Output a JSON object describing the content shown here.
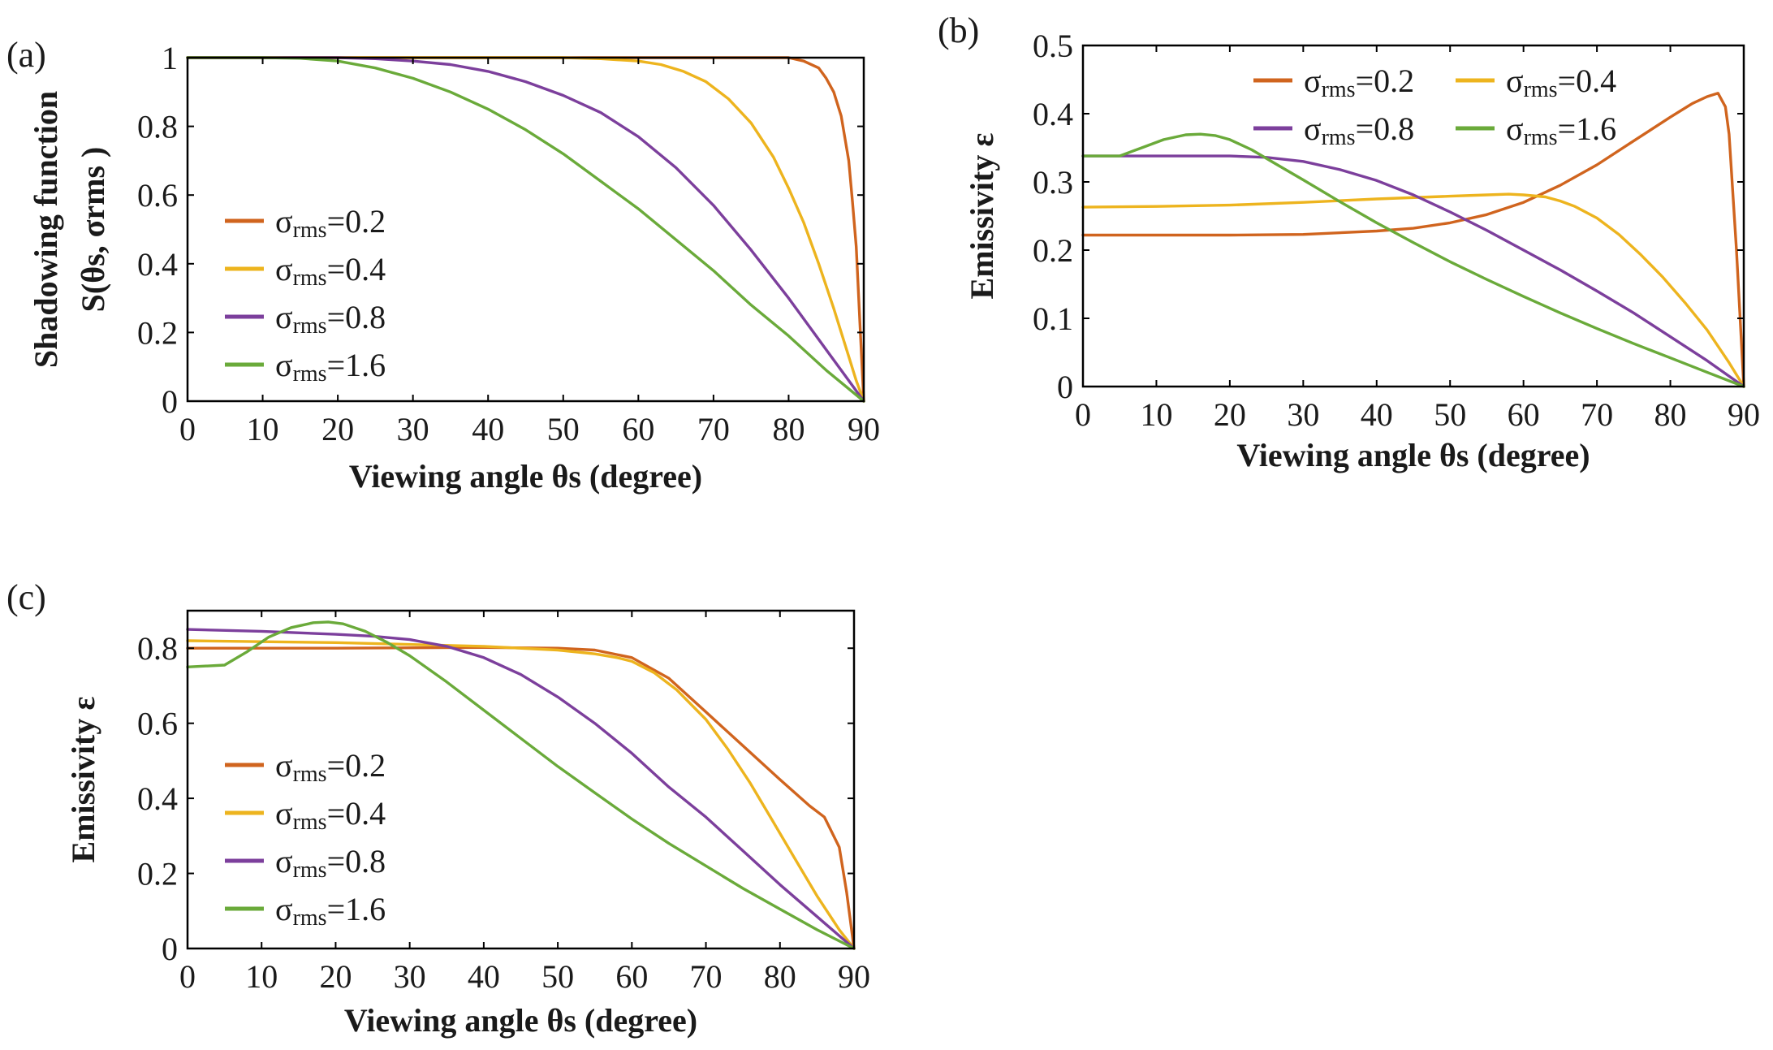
{
  "figure": {
    "panel_labels": [
      "(a)",
      "(b)",
      "(c)"
    ]
  },
  "colors": {
    "s02": "#D0641E",
    "s04": "#EDB41E",
    "s08": "#7C3F9C",
    "s16": "#6AAA3A"
  },
  "chart_data": [
    {
      "type": "line",
      "panel": "(a)",
      "title": "",
      "xlabel": "Viewing angle θs (degree)",
      "ylabel_line1": "Shadowing function",
      "ylabel_line2": "S(θs, σrms )",
      "xlim": [
        0,
        90
      ],
      "ylim": [
        0,
        1
      ],
      "xticks": [
        0,
        10,
        20,
        30,
        40,
        50,
        60,
        70,
        80,
        90
      ],
      "yticks": [
        0,
        0.2,
        0.4,
        0.6,
        0.8,
        1
      ],
      "ytick_labels": [
        "0",
        "0.2",
        "0.4",
        "0.6",
        "0.8",
        "1"
      ],
      "legend_position": "left",
      "legend_layout": "column",
      "series": [
        {
          "key": "s02",
          "name": "σrms=0.2",
          "label_sym": "σ",
          "label_sub": "rms",
          "label_val": "=0.2",
          "x": [
            0,
            20,
            40,
            60,
            70,
            78,
            80,
            82,
            84,
            85,
            86,
            87,
            88,
            88.5,
            89,
            89.5,
            90
          ],
          "y": [
            1,
            1,
            1,
            1,
            1,
            1,
            1,
            0.99,
            0.97,
            0.94,
            0.9,
            0.83,
            0.7,
            0.58,
            0.45,
            0.22,
            0
          ]
        },
        {
          "key": "s04",
          "name": "σrms=0.4",
          "label_sym": "σ",
          "label_sub": "rms",
          "label_val": "=0.4",
          "x": [
            0,
            30,
            45,
            50,
            55,
            60,
            63,
            66,
            69,
            72,
            75,
            78,
            80,
            82,
            84,
            86,
            88,
            89,
            90
          ],
          "y": [
            1,
            1,
            1,
            1,
            0.997,
            0.99,
            0.98,
            0.96,
            0.93,
            0.88,
            0.81,
            0.71,
            0.62,
            0.52,
            0.4,
            0.27,
            0.13,
            0.06,
            0
          ]
        },
        {
          "key": "s08",
          "name": "σrms=0.8",
          "label_sym": "σ",
          "label_sub": "rms",
          "label_val": "=0.8",
          "x": [
            0,
            15,
            20,
            25,
            30,
            35,
            40,
            45,
            50,
            55,
            60,
            65,
            70,
            75,
            80,
            85,
            88,
            90
          ],
          "y": [
            1,
            1,
            1,
            0.997,
            0.99,
            0.98,
            0.96,
            0.93,
            0.89,
            0.84,
            0.77,
            0.68,
            0.57,
            0.44,
            0.3,
            0.15,
            0.06,
            0
          ]
        },
        {
          "key": "s16",
          "name": "σrms=1.6",
          "label_sym": "σ",
          "label_sub": "rms",
          "label_val": "=1.6",
          "x": [
            0,
            10,
            15,
            20,
            25,
            30,
            35,
            40,
            45,
            50,
            55,
            60,
            65,
            70,
            75,
            80,
            85,
            90
          ],
          "y": [
            1,
            1,
            0.998,
            0.99,
            0.97,
            0.94,
            0.9,
            0.85,
            0.79,
            0.72,
            0.64,
            0.56,
            0.47,
            0.38,
            0.28,
            0.19,
            0.09,
            0
          ]
        }
      ]
    },
    {
      "type": "line",
      "panel": "(b)",
      "title": "",
      "xlabel": "Viewing angle θs (degree)",
      "ylabel": "Emissivity ε",
      "xlim": [
        0,
        90
      ],
      "ylim": [
        0,
        0.5
      ],
      "xticks": [
        0,
        10,
        20,
        30,
        40,
        50,
        60,
        70,
        80,
        90
      ],
      "yticks": [
        0,
        0.1,
        0.2,
        0.3,
        0.4,
        0.5
      ],
      "ytick_labels": [
        "0",
        "0.1",
        "0.2",
        "0.3",
        "0.4",
        "0.5"
      ],
      "legend_position": "top",
      "legend_layout": "2x2",
      "series": [
        {
          "key": "s02",
          "name": "σrms=0.2",
          "label_sym": "σ",
          "label_sub": "rms",
          "label_val": "=0.2",
          "x": [
            0,
            20,
            30,
            40,
            45,
            50,
            55,
            60,
            65,
            70,
            75,
            80,
            83,
            85,
            86.5,
            87.5,
            88,
            89,
            90
          ],
          "y": [
            0.222,
            0.222,
            0.223,
            0.228,
            0.232,
            0.24,
            0.252,
            0.27,
            0.295,
            0.325,
            0.36,
            0.395,
            0.415,
            0.425,
            0.43,
            0.41,
            0.37,
            0.2,
            0
          ]
        },
        {
          "key": "s04",
          "name": "σrms=0.4",
          "label_sym": "σ",
          "label_sub": "rms",
          "label_val": "=0.4",
          "x": [
            0,
            10,
            20,
            30,
            40,
            50,
            55,
            58,
            60,
            63,
            65,
            67,
            70,
            73,
            76,
            79,
            82,
            85,
            88,
            90
          ],
          "y": [
            0.263,
            0.264,
            0.266,
            0.27,
            0.275,
            0.279,
            0.281,
            0.282,
            0.281,
            0.278,
            0.272,
            0.264,
            0.247,
            0.223,
            0.193,
            0.16,
            0.123,
            0.083,
            0.035,
            0
          ]
        },
        {
          "key": "s08",
          "name": "σrms=0.8",
          "label_sym": "σ",
          "label_sub": "rms",
          "label_val": "=0.8",
          "x": [
            0,
            10,
            20,
            25,
            30,
            35,
            40,
            45,
            50,
            55,
            60,
            65,
            70,
            75,
            80,
            85,
            90
          ],
          "y": [
            0.338,
            0.338,
            0.338,
            0.336,
            0.33,
            0.318,
            0.302,
            0.281,
            0.256,
            0.229,
            0.2,
            0.171,
            0.14,
            0.108,
            0.073,
            0.038,
            0
          ]
        },
        {
          "key": "s16",
          "name": "σrms=1.6",
          "label_sym": "σ",
          "label_sub": "rms",
          "label_val": "=1.6",
          "x": [
            0,
            5,
            8,
            11,
            14,
            16,
            18,
            20,
            23,
            26,
            30,
            35,
            40,
            45,
            50,
            55,
            60,
            65,
            70,
            75,
            80,
            85,
            90
          ],
          "y": [
            0.338,
            0.338,
            0.35,
            0.362,
            0.369,
            0.37,
            0.368,
            0.362,
            0.347,
            0.328,
            0.303,
            0.271,
            0.24,
            0.211,
            0.183,
            0.157,
            0.132,
            0.108,
            0.085,
            0.063,
            0.042,
            0.021,
            0
          ]
        }
      ]
    },
    {
      "type": "line",
      "panel": "(c)",
      "title": "",
      "xlabel": "Viewing angle θs (degree)",
      "ylabel": "Emissivity ε",
      "xlim": [
        0,
        90
      ],
      "ylim": [
        0,
        0.9
      ],
      "xticks": [
        0,
        10,
        20,
        30,
        40,
        50,
        60,
        70,
        80,
        90
      ],
      "yticks": [
        0,
        0.2,
        0.4,
        0.6,
        0.8
      ],
      "ytick_labels": [
        "0",
        "0.2",
        "0.4",
        "0.6",
        "0.8"
      ],
      "legend_position": "left",
      "legend_layout": "column",
      "series": [
        {
          "key": "s02",
          "name": "σrms=0.2",
          "label_sym": "σ",
          "label_sub": "rms",
          "label_val": "=0.2",
          "x": [
            0,
            20,
            40,
            50,
            55,
            60,
            65,
            70,
            75,
            80,
            84,
            86,
            88,
            89,
            90
          ],
          "y": [
            0.8,
            0.8,
            0.802,
            0.8,
            0.795,
            0.775,
            0.72,
            0.63,
            0.54,
            0.45,
            0.38,
            0.35,
            0.27,
            0.15,
            0
          ]
        },
        {
          "key": "s04",
          "name": "σrms=0.4",
          "label_sym": "σ",
          "label_sub": "rms",
          "label_val": "=0.4",
          "x": [
            0,
            20,
            40,
            50,
            55,
            58,
            60,
            63,
            66,
            70,
            73,
            76,
            79,
            82,
            85,
            88,
            90
          ],
          "y": [
            0.82,
            0.815,
            0.805,
            0.795,
            0.785,
            0.775,
            0.765,
            0.735,
            0.69,
            0.61,
            0.53,
            0.44,
            0.34,
            0.24,
            0.14,
            0.05,
            0
          ]
        },
        {
          "key": "s08",
          "name": "σrms=0.8",
          "label_sym": "σ",
          "label_sub": "rms",
          "label_val": "=0.8",
          "x": [
            0,
            10,
            20,
            25,
            30,
            35,
            40,
            45,
            50,
            55,
            60,
            65,
            70,
            75,
            80,
            85,
            90
          ],
          "y": [
            0.85,
            0.845,
            0.837,
            0.832,
            0.823,
            0.805,
            0.775,
            0.73,
            0.67,
            0.6,
            0.52,
            0.43,
            0.35,
            0.26,
            0.17,
            0.085,
            0
          ]
        },
        {
          "key": "s16",
          "name": "σrms=1.6",
          "label_sym": "σ",
          "label_sub": "rms",
          "label_val": "=1.6",
          "x": [
            0,
            5,
            8,
            11,
            14,
            17,
            19,
            21,
            24,
            27,
            30,
            35,
            40,
            45,
            50,
            55,
            60,
            65,
            70,
            75,
            80,
            85,
            90
          ],
          "y": [
            0.75,
            0.755,
            0.79,
            0.83,
            0.855,
            0.868,
            0.87,
            0.865,
            0.845,
            0.815,
            0.78,
            0.71,
            0.635,
            0.56,
            0.485,
            0.415,
            0.345,
            0.28,
            0.22,
            0.16,
            0.105,
            0.05,
            0
          ]
        }
      ]
    }
  ]
}
